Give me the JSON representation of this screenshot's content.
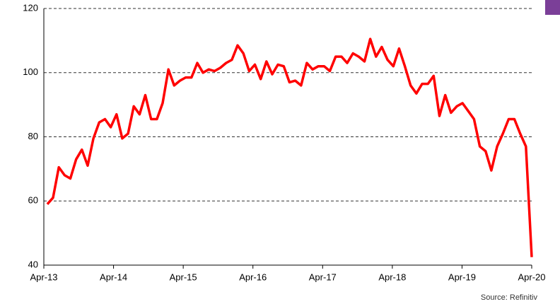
{
  "chart_data": {
    "type": "line",
    "source": "Source: Refinitiv",
    "categories": [
      "Apr-13",
      null,
      null,
      null,
      null,
      null,
      null,
      null,
      null,
      null,
      null,
      null,
      "Apr-14",
      null,
      null,
      null,
      null,
      null,
      null,
      null,
      null,
      null,
      null,
      null,
      "Apr-15",
      null,
      null,
      null,
      null,
      null,
      null,
      null,
      null,
      null,
      null,
      null,
      "Apr-16",
      null,
      null,
      null,
      null,
      null,
      null,
      null,
      null,
      null,
      null,
      null,
      "Apr-17",
      null,
      null,
      null,
      null,
      null,
      null,
      null,
      null,
      null,
      null,
      null,
      "Apr-18",
      null,
      null,
      null,
      null,
      null,
      null,
      null,
      null,
      null,
      null,
      null,
      "Apr-19",
      null,
      null,
      null,
      null,
      null,
      null,
      null,
      null,
      null,
      null,
      null,
      "Apr-20"
    ],
    "series": [
      {
        "color": "#ff0000",
        "values": [
          59,
          61,
          70.5,
          68,
          67,
          73,
          76,
          71,
          79.5,
          84.5,
          85.5,
          83,
          87,
          79.5,
          81,
          89.5,
          87,
          93,
          85.5,
          85.5,
          90.5,
          101,
          96,
          97.5,
          98.5,
          98.5,
          103,
          100,
          101,
          100.5,
          101.5,
          103,
          104,
          108.5,
          106,
          100.5,
          102.5,
          98,
          103.5,
          99.5,
          102.5,
          102,
          97,
          97.5,
          96,
          103,
          101,
          102,
          102,
          100.5,
          105,
          105,
          103,
          106,
          105,
          103.5,
          110.5,
          105,
          108,
          104,
          102,
          107.5,
          102,
          96,
          93.5,
          96.5,
          96.5,
          99,
          86.5,
          93,
          87.5,
          89.5,
          90.5,
          88,
          85.5,
          77,
          75.5,
          69.5,
          77,
          81,
          85.5,
          85.5,
          81,
          77,
          42.5
        ]
      }
    ],
    "ylim": [
      40,
      120
    ],
    "yticks": [
      40,
      60,
      80,
      100,
      120
    ],
    "grid": true
  }
}
